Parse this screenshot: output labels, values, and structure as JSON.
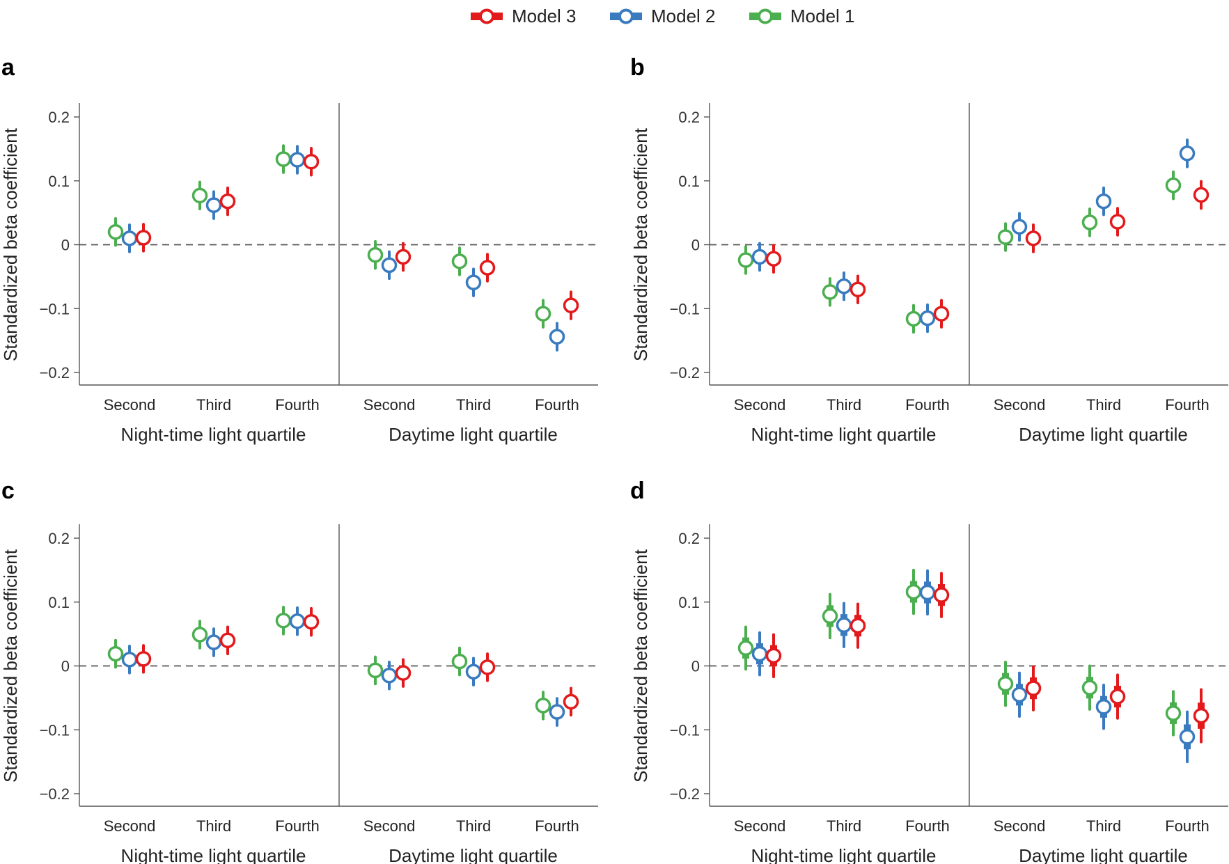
{
  "colors": {
    "model3": "#e31a1c",
    "model2": "#3a7bbf",
    "model1": "#4bae4f",
    "axis": "#555555",
    "zero_line": "#555555"
  },
  "legend": [
    {
      "key": "model3",
      "label": "Model 3"
    },
    {
      "key": "model2",
      "label": "Model 2"
    },
    {
      "key": "model1",
      "label": "Model 1"
    }
  ],
  "chart_data": [
    {
      "panel": "a",
      "type": "scatter",
      "ylabel": "Standardized beta coefficient",
      "ylim": [
        -0.2,
        0.2
      ],
      "yticks": [
        0.2,
        0.1,
        0,
        -0.1,
        -0.2
      ],
      "ytick_labels": [
        "0.2",
        "0.1",
        "0",
        "−0.1",
        "−0.2"
      ],
      "groups": [
        {
          "xlabel": "Night-time light quartile",
          "categories": [
            "Second",
            "Third",
            "Fourth"
          ]
        },
        {
          "xlabel": "Daytime light quartile",
          "categories": [
            "Second",
            "Third",
            "Fourth"
          ]
        }
      ],
      "error_style": "thin",
      "series": [
        {
          "name": "Model 1",
          "key": "model1",
          "values": [
            0.02,
            0.077,
            0.134,
            -0.016,
            -0.026,
            -0.108
          ],
          "lo": [
            -0.001,
            0.056,
            0.113,
            -0.037,
            -0.047,
            -0.129
          ],
          "hi": [
            0.041,
            0.098,
            0.155,
            0.005,
            -0.005,
            -0.087
          ]
        },
        {
          "name": "Model 2",
          "key": "model2",
          "values": [
            0.01,
            0.062,
            0.133,
            -0.032,
            -0.059,
            -0.144
          ],
          "lo": [
            -0.011,
            0.041,
            0.112,
            -0.053,
            -0.08,
            -0.165
          ],
          "hi": [
            0.031,
            0.083,
            0.154,
            -0.011,
            -0.038,
            -0.123
          ]
        },
        {
          "name": "Model 3",
          "key": "model3",
          "values": [
            0.011,
            0.068,
            0.13,
            -0.019,
            -0.036,
            -0.095
          ],
          "lo": [
            -0.01,
            0.047,
            0.109,
            -0.04,
            -0.057,
            -0.116
          ],
          "hi": [
            0.032,
            0.089,
            0.151,
            0.002,
            -0.015,
            -0.074
          ]
        }
      ]
    },
    {
      "panel": "b",
      "type": "scatter",
      "ylabel": "Standardized beta coefficient",
      "ylim": [
        -0.2,
        0.2
      ],
      "yticks": [
        0.2,
        0.1,
        0,
        -0.1,
        -0.2
      ],
      "ytick_labels": [
        "0.2",
        "0.1",
        "0",
        "−0.1",
        "−0.2"
      ],
      "groups": [
        {
          "xlabel": "Night-time light quartile",
          "categories": [
            "Second",
            "Third",
            "Fourth"
          ]
        },
        {
          "xlabel": "Daytime light quartile",
          "categories": [
            "Second",
            "Third",
            "Fourth"
          ]
        }
      ],
      "error_style": "thin",
      "series": [
        {
          "name": "Model 1",
          "key": "model1",
          "values": [
            -0.024,
            -0.074,
            -0.116,
            0.012,
            0.035,
            0.093
          ],
          "lo": [
            -0.045,
            -0.095,
            -0.137,
            -0.009,
            0.014,
            0.072
          ],
          "hi": [
            -0.003,
            -0.053,
            -0.095,
            0.033,
            0.056,
            0.114
          ]
        },
        {
          "name": "Model 2",
          "key": "model2",
          "values": [
            -0.019,
            -0.065,
            -0.115,
            0.028,
            0.068,
            0.143
          ],
          "lo": [
            -0.04,
            -0.086,
            -0.136,
            0.007,
            0.047,
            0.122
          ],
          "hi": [
            0.002,
            -0.044,
            -0.094,
            0.049,
            0.089,
            0.164
          ]
        },
        {
          "name": "Model 3",
          "key": "model3",
          "values": [
            -0.022,
            -0.07,
            -0.108,
            0.01,
            0.036,
            0.078
          ],
          "lo": [
            -0.043,
            -0.091,
            -0.129,
            -0.011,
            0.015,
            0.057
          ],
          "hi": [
            -0.001,
            -0.049,
            -0.087,
            0.031,
            0.057,
            0.099
          ]
        }
      ]
    },
    {
      "panel": "c",
      "type": "scatter",
      "ylabel": "Standardized beta coefficient",
      "ylim": [
        -0.2,
        0.2
      ],
      "yticks": [
        0.2,
        0.1,
        0,
        -0.1,
        -0.2
      ],
      "ytick_labels": [
        "0.2",
        "0.1",
        "0",
        "−0.1",
        "−0.2"
      ],
      "groups": [
        {
          "xlabel": "Night-time light quartile",
          "categories": [
            "Second",
            "Third",
            "Fourth"
          ]
        },
        {
          "xlabel": "Daytime light quartile",
          "categories": [
            "Second",
            "Third",
            "Fourth"
          ]
        }
      ],
      "error_style": "thin",
      "series": [
        {
          "name": "Model 1",
          "key": "model1",
          "values": [
            0.019,
            0.049,
            0.071,
            -0.007,
            0.007,
            -0.062
          ],
          "lo": [
            -0.002,
            0.028,
            0.05,
            -0.028,
            -0.014,
            -0.083
          ],
          "hi": [
            0.04,
            0.07,
            0.092,
            0.014,
            0.028,
            -0.041
          ]
        },
        {
          "name": "Model 2",
          "key": "model2",
          "values": [
            0.01,
            0.037,
            0.07,
            -0.015,
            -0.009,
            -0.072
          ],
          "lo": [
            -0.011,
            0.016,
            0.049,
            -0.036,
            -0.03,
            -0.093
          ],
          "hi": [
            0.031,
            0.058,
            0.091,
            0.006,
            0.012,
            -0.051
          ]
        },
        {
          "name": "Model 3",
          "key": "model3",
          "values": [
            0.011,
            0.04,
            0.069,
            -0.011,
            -0.002,
            -0.056
          ],
          "lo": [
            -0.01,
            0.019,
            0.048,
            -0.032,
            -0.023,
            -0.077
          ],
          "hi": [
            0.032,
            0.061,
            0.09,
            0.01,
            0.019,
            -0.035
          ]
        }
      ]
    },
    {
      "panel": "d",
      "type": "scatter",
      "ylabel": "Standardized beta coefficient",
      "ylim": [
        -0.2,
        0.2
      ],
      "yticks": [
        0.2,
        0.1,
        0,
        -0.1,
        -0.2
      ],
      "ytick_labels": [
        "0.2",
        "0.1",
        "0",
        "−0.1",
        "−0.2"
      ],
      "groups": [
        {
          "xlabel": "Night-time light quartile",
          "categories": [
            "Second",
            "Third",
            "Fourth"
          ]
        },
        {
          "xlabel": "Daytime light quartile",
          "categories": [
            "Second",
            "Third",
            "Fourth"
          ]
        }
      ],
      "error_style": "thick",
      "series": [
        {
          "name": "Model 1",
          "key": "model1",
          "values": [
            0.028,
            0.078,
            0.116,
            -0.028,
            -0.034,
            -0.074
          ],
          "lo": [
            -0.005,
            0.044,
            0.082,
            -0.062,
            -0.068,
            -0.108
          ],
          "hi": [
            0.061,
            0.112,
            0.15,
            0.006,
            0.0,
            -0.04
          ]
        },
        {
          "name": "Model 2",
          "key": "model2",
          "values": [
            0.019,
            0.064,
            0.115,
            -0.045,
            -0.064,
            -0.111
          ],
          "lo": [
            -0.014,
            0.03,
            0.081,
            -0.079,
            -0.098,
            -0.15
          ],
          "hi": [
            0.052,
            0.098,
            0.149,
            -0.011,
            -0.03,
            -0.072
          ]
        },
        {
          "name": "Model 3",
          "key": "model3",
          "values": [
            0.016,
            0.063,
            0.111,
            -0.035,
            -0.048,
            -0.078
          ],
          "lo": [
            -0.017,
            0.029,
            0.077,
            -0.069,
            -0.082,
            -0.119
          ],
          "hi": [
            0.049,
            0.097,
            0.145,
            -0.001,
            -0.014,
            -0.037
          ]
        }
      ]
    }
  ]
}
